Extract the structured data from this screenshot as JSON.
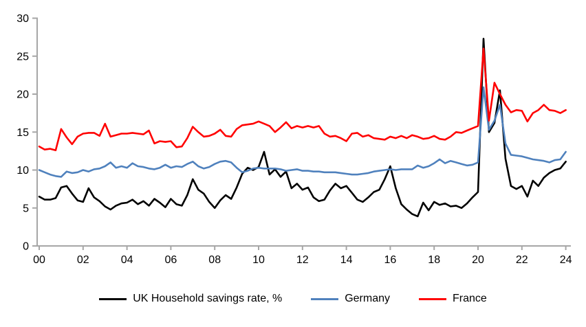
{
  "chart_data": {
    "type": "line",
    "title": "",
    "xlabel": "",
    "ylabel": "",
    "x_start_year": 2000,
    "frequency": "quarterly",
    "x_tick_labels": [
      "00",
      "02",
      "04",
      "06",
      "08",
      "10",
      "12",
      "14",
      "16",
      "18",
      "20",
      "22",
      "24"
    ],
    "y_ticks": [
      0,
      5,
      10,
      15,
      20,
      25,
      30
    ],
    "ylim": [
      0,
      30
    ],
    "xlim_years": [
      2000,
      2024.25
    ],
    "grid": false,
    "legend_position": "bottom",
    "axis_color": "#a6a6a6",
    "tick_label_color": "#000000",
    "series": [
      {
        "name": "UK Household savings rate, %",
        "color": "#000000",
        "values": [
          6.5,
          6.1,
          6.1,
          6.3,
          7.7,
          7.9,
          6.9,
          6.0,
          5.8,
          7.6,
          6.4,
          5.9,
          5.2,
          4.8,
          5.3,
          5.6,
          5.7,
          6.1,
          5.5,
          5.9,
          5.3,
          6.2,
          5.7,
          5.1,
          6.2,
          5.5,
          5.3,
          6.7,
          8.8,
          7.4,
          6.9,
          5.8,
          5.0,
          6.0,
          6.7,
          6.2,
          7.7,
          9.5,
          10.3,
          10.0,
          10.4,
          12.4,
          9.4,
          10.1,
          9.1,
          9.8,
          7.6,
          8.2,
          7.4,
          7.7,
          6.4,
          5.9,
          6.1,
          7.3,
          8.2,
          7.6,
          7.9,
          7.0,
          6.1,
          5.8,
          6.4,
          7.1,
          7.4,
          8.8,
          10.5,
          7.6,
          5.5,
          4.8,
          4.2,
          3.9,
          5.7,
          4.7,
          5.8,
          5.4,
          5.6,
          5.2,
          5.3,
          5.0,
          5.6,
          6.4,
          7.1,
          27.3,
          15.0,
          16.2,
          20.5,
          11.5,
          7.9,
          7.5,
          7.9,
          6.5,
          8.6,
          7.9,
          9.0,
          9.6,
          10.0,
          10.2,
          11.1
        ]
      },
      {
        "name": "Germany",
        "color": "#4f81bd",
        "values": [
          10.0,
          9.7,
          9.4,
          9.2,
          9.1,
          9.8,
          9.6,
          9.7,
          10.0,
          9.8,
          10.1,
          10.2,
          10.5,
          11.0,
          10.3,
          10.5,
          10.3,
          10.9,
          10.5,
          10.4,
          10.2,
          10.1,
          10.3,
          10.7,
          10.3,
          10.5,
          10.4,
          10.8,
          11.1,
          10.5,
          10.2,
          10.4,
          10.8,
          11.1,
          11.2,
          11.0,
          10.3,
          9.7,
          9.9,
          10.2,
          10.3,
          10.2,
          10.2,
          10.2,
          10.1,
          9.9,
          10.0,
          10.1,
          9.9,
          9.9,
          9.8,
          9.8,
          9.7,
          9.7,
          9.7,
          9.6,
          9.5,
          9.4,
          9.4,
          9.5,
          9.6,
          9.8,
          9.9,
          10.0,
          10.1,
          10.0,
          10.1,
          10.1,
          10.1,
          10.6,
          10.3,
          10.5,
          10.9,
          11.4,
          10.9,
          11.2,
          11.0,
          10.8,
          10.6,
          10.7,
          11.0,
          20.9,
          15.3,
          16.5,
          18.6,
          13.5,
          12.0,
          11.9,
          11.8,
          11.6,
          11.4,
          11.3,
          11.2,
          11.0,
          11.3,
          11.4,
          12.4
        ]
      },
      {
        "name": "France",
        "color": "#ff0000",
        "values": [
          13.1,
          12.7,
          12.8,
          12.6,
          15.4,
          14.3,
          13.4,
          14.4,
          14.8,
          14.9,
          14.9,
          14.5,
          16.1,
          14.4,
          14.6,
          14.8,
          14.8,
          14.9,
          14.8,
          14.7,
          15.2,
          13.5,
          13.8,
          13.7,
          13.8,
          13.0,
          13.1,
          14.2,
          15.7,
          15.0,
          14.4,
          14.5,
          14.8,
          15.3,
          14.5,
          14.4,
          15.4,
          15.9,
          16.0,
          16.1,
          16.4,
          16.1,
          15.8,
          15.0,
          15.6,
          16.3,
          15.5,
          15.8,
          15.6,
          15.8,
          15.6,
          15.8,
          14.8,
          14.4,
          14.5,
          14.2,
          13.8,
          14.8,
          14.9,
          14.4,
          14.6,
          14.2,
          14.1,
          14.0,
          14.4,
          14.2,
          14.5,
          14.2,
          14.6,
          14.4,
          14.1,
          14.2,
          14.5,
          14.1,
          14.0,
          14.4,
          15.0,
          14.9,
          15.2,
          15.5,
          15.8,
          26.0,
          16.5,
          21.5,
          20.0,
          18.6,
          17.6,
          17.9,
          17.8,
          16.4,
          17.5,
          17.9,
          18.6,
          17.9,
          17.8,
          17.5,
          17.9
        ]
      }
    ]
  }
}
